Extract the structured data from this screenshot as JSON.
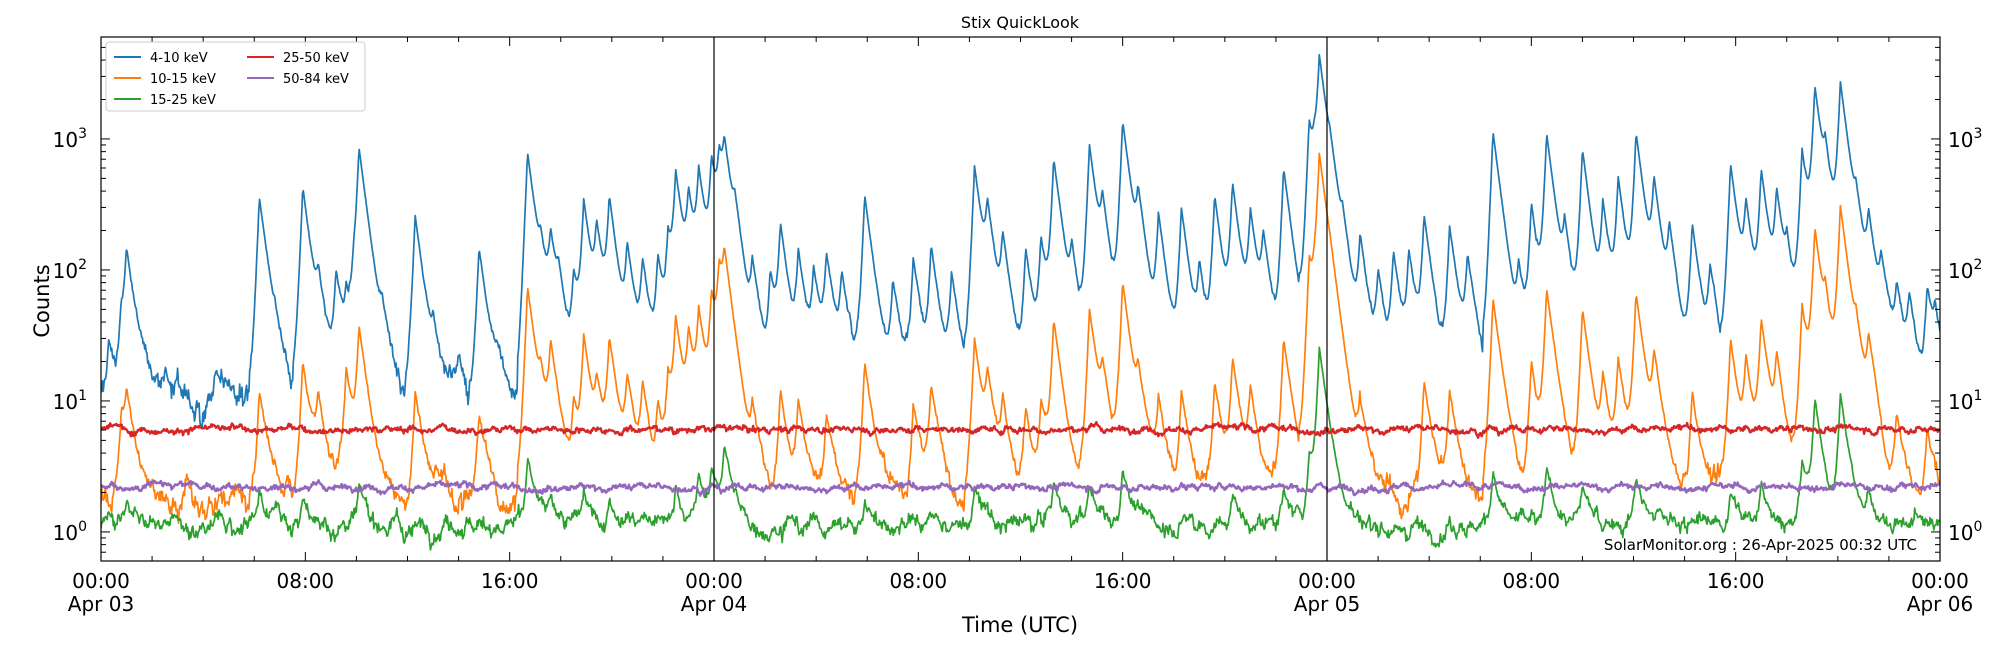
{
  "chart_data": {
    "type": "line",
    "title": "Stix QuickLook",
    "xlabel": "Time (UTC)",
    "ylabel": "Counts",
    "yscale": "log",
    "ylim": [
      0.6,
      6000
    ],
    "xlim_hours": [
      0,
      72
    ],
    "y_ticks": [
      {
        "value": 1,
        "label": "10",
        "exp": "0"
      },
      {
        "value": 10,
        "label": "10",
        "exp": "1"
      },
      {
        "value": 100,
        "label": "10",
        "exp": "2"
      },
      {
        "value": 1000,
        "label": "10",
        "exp": "3"
      }
    ],
    "x_ticks": [
      {
        "hour": 0,
        "time": "00:00",
        "date": "Apr 03"
      },
      {
        "hour": 8,
        "time": "08:00",
        "date": ""
      },
      {
        "hour": 16,
        "time": "16:00",
        "date": ""
      },
      {
        "hour": 24,
        "time": "00:00",
        "date": "Apr 04"
      },
      {
        "hour": 32,
        "time": "08:00",
        "date": ""
      },
      {
        "hour": 40,
        "time": "16:00",
        "date": ""
      },
      {
        "hour": 48,
        "time": "00:00",
        "date": "Apr 05"
      },
      {
        "hour": 56,
        "time": "08:00",
        "date": ""
      },
      {
        "hour": 64,
        "time": "16:00",
        "date": ""
      },
      {
        "hour": 72,
        "time": "00:00",
        "date": "Apr 06"
      }
    ],
    "day_boundaries_hours": [
      24,
      48
    ],
    "annotation": "SolarMonitor.org : 26-Apr-2025 00:32 UTC",
    "legend_position": "top-left",
    "series": [
      {
        "name": "4-10 keV",
        "color": "#1f77b4",
        "baseline": 11,
        "noise": 0.12,
        "peaks": [
          [
            0.3,
            30
          ],
          [
            0.8,
            45
          ],
          [
            1.0,
            130
          ],
          [
            2.5,
            15
          ],
          [
            4.5,
            18
          ],
          [
            6.2,
            360
          ],
          [
            6.8,
            25
          ],
          [
            7.9,
            430
          ],
          [
            8.5,
            60
          ],
          [
            9.2,
            90
          ],
          [
            9.6,
            60
          ],
          [
            9.9,
            65
          ],
          [
            10.1,
            820
          ],
          [
            11.0,
            35
          ],
          [
            12.3,
            260
          ],
          [
            13.0,
            30
          ],
          [
            14.0,
            20
          ],
          [
            14.8,
            150
          ],
          [
            15.5,
            20
          ],
          [
            16.7,
            790
          ],
          [
            17.2,
            95
          ],
          [
            17.6,
            160
          ],
          [
            17.9,
            60
          ],
          [
            18.5,
            90
          ],
          [
            18.9,
            330
          ],
          [
            19.4,
            190
          ],
          [
            19.9,
            330
          ],
          [
            20.6,
            140
          ],
          [
            21.2,
            110
          ],
          [
            21.8,
            125
          ],
          [
            22.2,
            170
          ],
          [
            22.5,
            520
          ],
          [
            23.0,
            340
          ],
          [
            23.4,
            530
          ],
          [
            23.9,
            640
          ],
          [
            24.2,
            600
          ],
          [
            24.4,
            680
          ],
          [
            24.8,
            170
          ],
          [
            25.5,
            100
          ],
          [
            26.2,
            95
          ],
          [
            26.6,
            210
          ],
          [
            27.3,
            130
          ],
          [
            27.9,
            90
          ],
          [
            28.4,
            120
          ],
          [
            29.0,
            85
          ],
          [
            29.9,
            370
          ],
          [
            31.0,
            80
          ],
          [
            31.8,
            120
          ],
          [
            32.5,
            150
          ],
          [
            33.3,
            90
          ],
          [
            34.2,
            620
          ],
          [
            34.7,
            260
          ],
          [
            35.3,
            160
          ],
          [
            36.2,
            140
          ],
          [
            36.8,
            170
          ],
          [
            37.3,
            680
          ],
          [
            38.0,
            120
          ],
          [
            38.7,
            890
          ],
          [
            39.2,
            270
          ],
          [
            40.0,
            1350
          ],
          [
            40.6,
            300
          ],
          [
            41.4,
            250
          ],
          [
            42.3,
            290
          ],
          [
            43.0,
            100
          ],
          [
            43.6,
            360
          ],
          [
            44.3,
            440
          ],
          [
            45.0,
            260
          ],
          [
            45.5,
            160
          ],
          [
            46.3,
            590
          ],
          [
            47.3,
            1330
          ],
          [
            47.5,
            360
          ],
          [
            47.7,
            3900
          ],
          [
            48.1,
            250
          ],
          [
            48.6,
            120
          ],
          [
            49.3,
            175
          ],
          [
            50.0,
            90
          ],
          [
            50.6,
            130
          ],
          [
            51.2,
            130
          ],
          [
            51.8,
            250
          ],
          [
            52.8,
            210
          ],
          [
            53.5,
            120
          ],
          [
            54.5,
            1130
          ],
          [
            55.5,
            90
          ],
          [
            56.0,
            310
          ],
          [
            56.6,
            1060
          ],
          [
            57.3,
            180
          ],
          [
            58.0,
            820
          ],
          [
            58.8,
            300
          ],
          [
            59.4,
            480
          ],
          [
            60.1,
            1080
          ],
          [
            60.8,
            440
          ],
          [
            61.4,
            180
          ],
          [
            62.3,
            220
          ],
          [
            63.0,
            90
          ],
          [
            63.8,
            640
          ],
          [
            64.4,
            290
          ],
          [
            65.0,
            550
          ],
          [
            65.6,
            370
          ],
          [
            66.0,
            110
          ],
          [
            66.6,
            830
          ],
          [
            67.1,
            2400
          ],
          [
            67.5,
            520
          ],
          [
            68.1,
            2600
          ],
          [
            68.7,
            200
          ],
          [
            69.2,
            220
          ],
          [
            69.7,
            100
          ],
          [
            70.3,
            70
          ],
          [
            70.8,
            55
          ],
          [
            71.5,
            75
          ],
          [
            71.8,
            40
          ]
        ]
      },
      {
        "name": "10-15 keV",
        "color": "#ff7f0e",
        "baseline": 1.9,
        "noise": 0.1,
        "peaks": [
          [
            0.8,
            8
          ],
          [
            1.0,
            10
          ],
          [
            6.2,
            12
          ],
          [
            7.9,
            20
          ],
          [
            8.5,
            10
          ],
          [
            9.6,
            18
          ],
          [
            10.1,
            35
          ],
          [
            12.3,
            12
          ],
          [
            14.8,
            8
          ],
          [
            16.7,
            75
          ],
          [
            17.2,
            10
          ],
          [
            17.6,
            25
          ],
          [
            18.5,
            10
          ],
          [
            18.9,
            30
          ],
          [
            19.4,
            12
          ],
          [
            19.9,
            28
          ],
          [
            20.6,
            14
          ],
          [
            21.2,
            12
          ],
          [
            21.8,
            9
          ],
          [
            22.2,
            15
          ],
          [
            22.5,
            40
          ],
          [
            23.0,
            30
          ],
          [
            23.4,
            45
          ],
          [
            23.9,
            60
          ],
          [
            24.2,
            90
          ],
          [
            24.4,
            100
          ],
          [
            25.5,
            8
          ],
          [
            26.6,
            12
          ],
          [
            27.3,
            10
          ],
          [
            28.4,
            8
          ],
          [
            29.9,
            20
          ],
          [
            31.8,
            10
          ],
          [
            32.5,
            12
          ],
          [
            34.2,
            30
          ],
          [
            34.7,
            14
          ],
          [
            35.3,
            10
          ],
          [
            36.2,
            9
          ],
          [
            36.8,
            10
          ],
          [
            37.3,
            40
          ],
          [
            38.7,
            50
          ],
          [
            39.2,
            14
          ],
          [
            40.0,
            80
          ],
          [
            40.6,
            12
          ],
          [
            41.4,
            10
          ],
          [
            42.3,
            12
          ],
          [
            43.6,
            14
          ],
          [
            44.3,
            20
          ],
          [
            45.0,
            12
          ],
          [
            46.3,
            30
          ],
          [
            47.3,
            120
          ],
          [
            47.5,
            20
          ],
          [
            47.7,
            740
          ],
          [
            48.1,
            14
          ],
          [
            49.3,
            10
          ],
          [
            51.8,
            14
          ],
          [
            52.8,
            12
          ],
          [
            54.5,
            60
          ],
          [
            56.0,
            20
          ],
          [
            56.6,
            70
          ],
          [
            58.0,
            50
          ],
          [
            58.8,
            14
          ],
          [
            59.4,
            20
          ],
          [
            60.1,
            65
          ],
          [
            60.8,
            20
          ],
          [
            62.3,
            12
          ],
          [
            63.8,
            30
          ],
          [
            64.4,
            20
          ],
          [
            65.0,
            40
          ],
          [
            65.6,
            20
          ],
          [
            66.6,
            55
          ],
          [
            67.1,
            200
          ],
          [
            67.5,
            40
          ],
          [
            68.1,
            300
          ],
          [
            68.7,
            20
          ],
          [
            69.2,
            25
          ],
          [
            70.3,
            8
          ],
          [
            71.5,
            6
          ]
        ]
      },
      {
        "name": "15-25 keV",
        "color": "#2ca02c",
        "baseline": 1.15,
        "noise": 0.07,
        "peaks": [
          [
            1.0,
            1.6
          ],
          [
            6.2,
            1.9
          ],
          [
            7.9,
            2.0
          ],
          [
            10.1,
            2.2
          ],
          [
            16.7,
            3.5
          ],
          [
            17.6,
            1.8
          ],
          [
            18.9,
            2.0
          ],
          [
            19.9,
            2.0
          ],
          [
            22.5,
            2.4
          ],
          [
            23.4,
            2.6
          ],
          [
            23.9,
            3.0
          ],
          [
            24.4,
            4.5
          ],
          [
            29.9,
            1.7
          ],
          [
            34.2,
            2.0
          ],
          [
            37.3,
            2.3
          ],
          [
            38.7,
            2.3
          ],
          [
            40.0,
            3.2
          ],
          [
            44.3,
            1.8
          ],
          [
            46.3,
            2.0
          ],
          [
            47.3,
            4.0
          ],
          [
            47.7,
            25
          ],
          [
            54.5,
            3.0
          ],
          [
            56.6,
            3.0
          ],
          [
            58.0,
            2.2
          ],
          [
            60.1,
            2.5
          ],
          [
            63.8,
            2.0
          ],
          [
            65.0,
            2.5
          ],
          [
            66.6,
            3.5
          ],
          [
            67.1,
            10
          ],
          [
            68.1,
            11
          ],
          [
            69.2,
            2.0
          ]
        ]
      },
      {
        "name": "25-50 keV",
        "color": "#d62728",
        "baseline": 6.1,
        "noise": 0.025,
        "peaks": []
      },
      {
        "name": "50-84 keV",
        "color": "#9467bd",
        "baseline": 2.2,
        "noise": 0.025,
        "peaks": []
      }
    ]
  }
}
